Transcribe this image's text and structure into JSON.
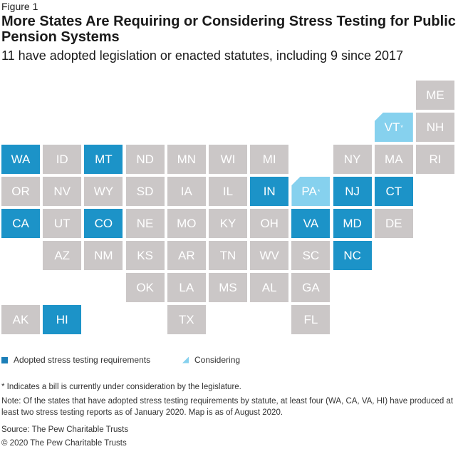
{
  "figure_label": "Figure 1",
  "title": "More States Are Requiring or Considering Stress Testing for Public Pension Systems",
  "subtitle": "11 have adopted legislation or enacted statutes, including 9 since 2017",
  "colors": {
    "adopted": "#1c93c8",
    "considering": "#86d1ee",
    "none": "#cbc7c7"
  },
  "states": [
    {
      "abbr": "ME",
      "row": 0,
      "col": 10,
      "status": "none"
    },
    {
      "abbr": "VT",
      "row": 1,
      "col": 9,
      "status": "considering",
      "pending": true,
      "marker": "*"
    },
    {
      "abbr": "NH",
      "row": 1,
      "col": 10,
      "status": "none"
    },
    {
      "abbr": "WA",
      "row": 2,
      "col": 0,
      "status": "adopted"
    },
    {
      "abbr": "ID",
      "row": 2,
      "col": 1,
      "status": "none"
    },
    {
      "abbr": "MT",
      "row": 2,
      "col": 2,
      "status": "adopted"
    },
    {
      "abbr": "ND",
      "row": 2,
      "col": 3,
      "status": "none"
    },
    {
      "abbr": "MN",
      "row": 2,
      "col": 4,
      "status": "none"
    },
    {
      "abbr": "WI",
      "row": 2,
      "col": 5,
      "status": "none"
    },
    {
      "abbr": "MI",
      "row": 2,
      "col": 6,
      "status": "none"
    },
    {
      "abbr": "NY",
      "row": 2,
      "col": 8,
      "status": "none"
    },
    {
      "abbr": "MA",
      "row": 2,
      "col": 9,
      "status": "none"
    },
    {
      "abbr": "RI",
      "row": 2,
      "col": 10,
      "status": "none"
    },
    {
      "abbr": "OR",
      "row": 3,
      "col": 0,
      "status": "none"
    },
    {
      "abbr": "NV",
      "row": 3,
      "col": 1,
      "status": "none"
    },
    {
      "abbr": "WY",
      "row": 3,
      "col": 2,
      "status": "none"
    },
    {
      "abbr": "SD",
      "row": 3,
      "col": 3,
      "status": "none"
    },
    {
      "abbr": "IA",
      "row": 3,
      "col": 4,
      "status": "none"
    },
    {
      "abbr": "IL",
      "row": 3,
      "col": 5,
      "status": "none"
    },
    {
      "abbr": "IN",
      "row": 3,
      "col": 6,
      "status": "adopted"
    },
    {
      "abbr": "PA",
      "row": 3,
      "col": 7,
      "status": "considering",
      "pending": true,
      "marker": "*"
    },
    {
      "abbr": "NJ",
      "row": 3,
      "col": 8,
      "status": "adopted"
    },
    {
      "abbr": "CT",
      "row": 3,
      "col": 9,
      "status": "adopted"
    },
    {
      "abbr": "CA",
      "row": 4,
      "col": 0,
      "status": "adopted"
    },
    {
      "abbr": "UT",
      "row": 4,
      "col": 1,
      "status": "none"
    },
    {
      "abbr": "CO",
      "row": 4,
      "col": 2,
      "status": "adopted"
    },
    {
      "abbr": "NE",
      "row": 4,
      "col": 3,
      "status": "none"
    },
    {
      "abbr": "MO",
      "row": 4,
      "col": 4,
      "status": "none"
    },
    {
      "abbr": "KY",
      "row": 4,
      "col": 5,
      "status": "none"
    },
    {
      "abbr": "OH",
      "row": 4,
      "col": 6,
      "status": "none"
    },
    {
      "abbr": "VA",
      "row": 4,
      "col": 7,
      "status": "adopted"
    },
    {
      "abbr": "MD",
      "row": 4,
      "col": 8,
      "status": "adopted"
    },
    {
      "abbr": "DE",
      "row": 4,
      "col": 9,
      "status": "none"
    },
    {
      "abbr": "AZ",
      "row": 5,
      "col": 1,
      "status": "none"
    },
    {
      "abbr": "NM",
      "row": 5,
      "col": 2,
      "status": "none"
    },
    {
      "abbr": "KS",
      "row": 5,
      "col": 3,
      "status": "none"
    },
    {
      "abbr": "AR",
      "row": 5,
      "col": 4,
      "status": "none"
    },
    {
      "abbr": "TN",
      "row": 5,
      "col": 5,
      "status": "none"
    },
    {
      "abbr": "WV",
      "row": 5,
      "col": 6,
      "status": "none"
    },
    {
      "abbr": "SC",
      "row": 5,
      "col": 7,
      "status": "none"
    },
    {
      "abbr": "NC",
      "row": 5,
      "col": 8,
      "status": "adopted"
    },
    {
      "abbr": "OK",
      "row": 6,
      "col": 3,
      "status": "none"
    },
    {
      "abbr": "LA",
      "row": 6,
      "col": 4,
      "status": "none"
    },
    {
      "abbr": "MS",
      "row": 6,
      "col": 5,
      "status": "none"
    },
    {
      "abbr": "AL",
      "row": 6,
      "col": 6,
      "status": "none"
    },
    {
      "abbr": "GA",
      "row": 6,
      "col": 7,
      "status": "none"
    },
    {
      "abbr": "AK",
      "row": 7,
      "col": 0,
      "status": "none"
    },
    {
      "abbr": "HI",
      "row": 7,
      "col": 1,
      "status": "adopted"
    },
    {
      "abbr": "TX",
      "row": 7,
      "col": 4,
      "status": "none"
    },
    {
      "abbr": "FL",
      "row": 7,
      "col": 7,
      "status": "none"
    }
  ],
  "legend": {
    "adopted": "Adopted stress testing requirements",
    "considering": "Considering"
  },
  "footnote": "* Indicates a bill is currently under consideration by the legislature.",
  "note": "Note: Of the states that have adopted stress testing requirements by statute, at least four (WA, CA, VA, HI) have produced at least two stress testing reports as of January 2020. Map is as of August 2020.",
  "source": "Source: The Pew Charitable Trusts",
  "copyright": "© 2020 The Pew Charitable Trusts"
}
